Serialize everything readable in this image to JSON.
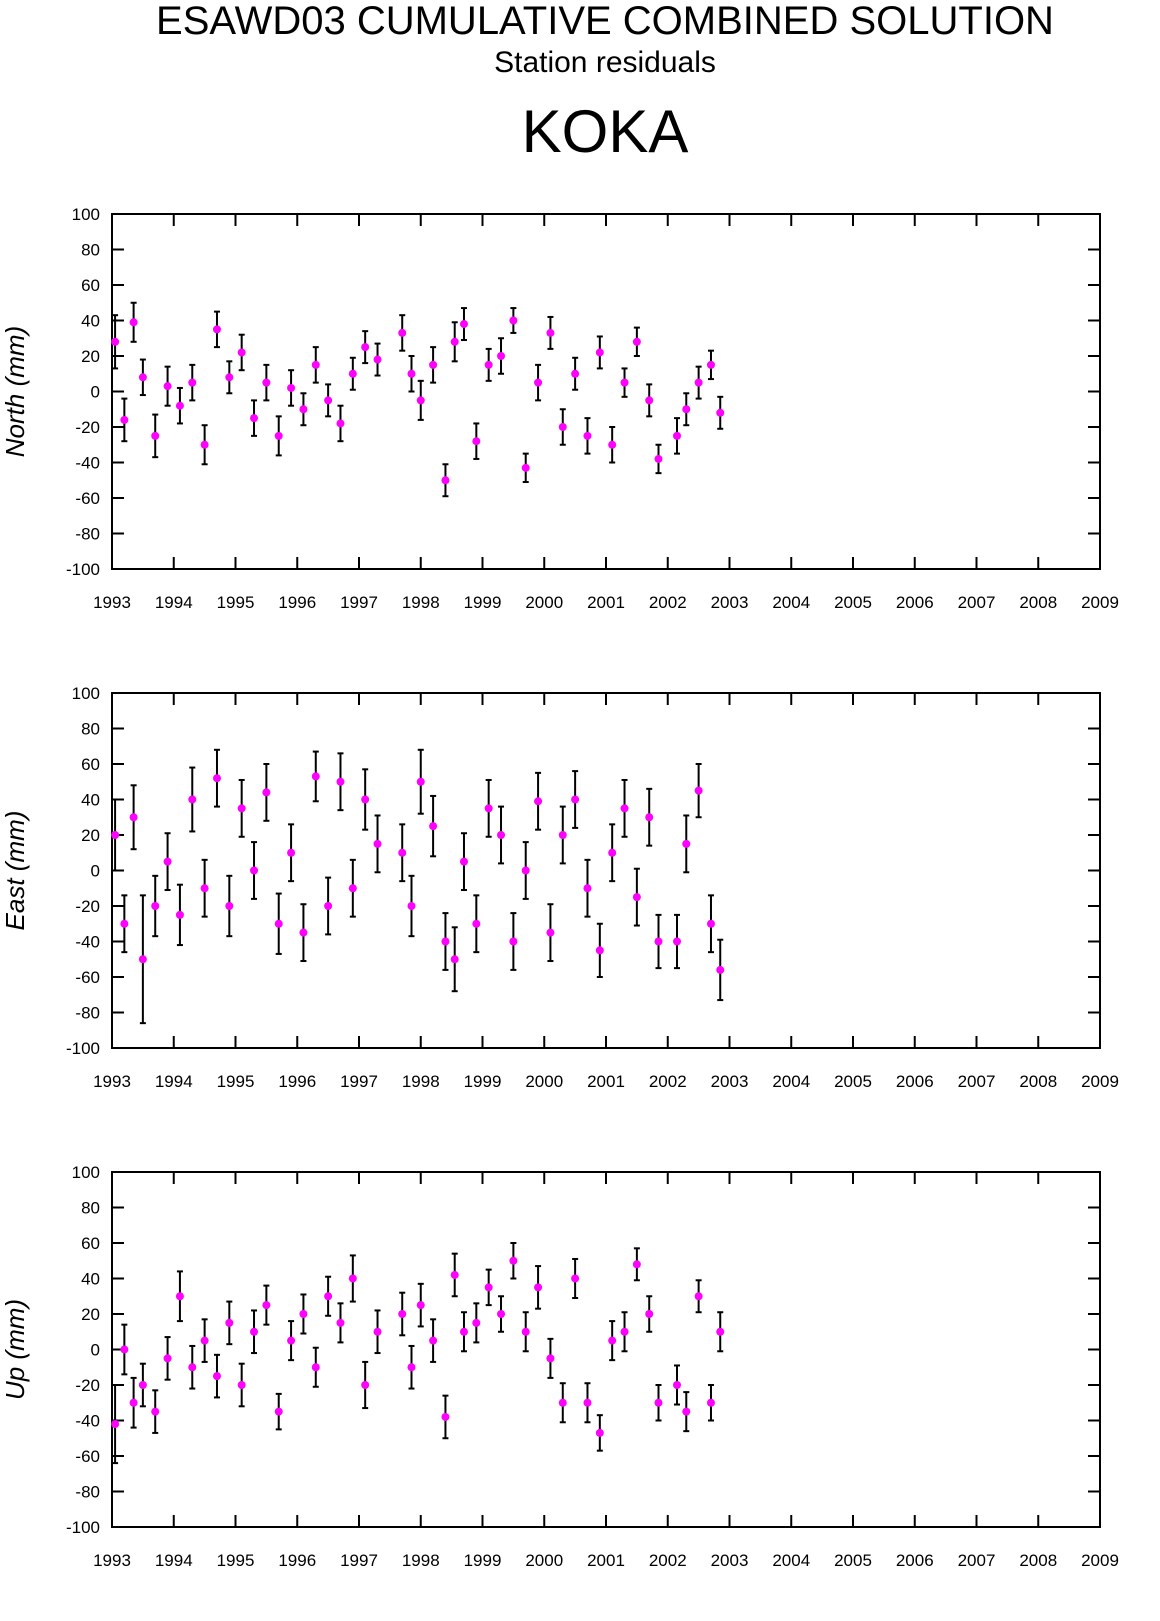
{
  "header": {
    "title": "ESAWD03 CUMULATIVE COMBINED SOLUTION",
    "subtitle": "Station residuals",
    "station": "KOKA"
  },
  "chart_data": [
    {
      "type": "scatter",
      "ylabel": "North (mm)",
      "color": "#ff00ff",
      "error_color": "#000000",
      "xlim": [
        1993,
        2009
      ],
      "xticks": [
        1993,
        1994,
        1995,
        1996,
        1997,
        1998,
        1999,
        2000,
        2001,
        2002,
        2003,
        2004,
        2005,
        2006,
        2007,
        2008,
        2009
      ],
      "ylim": [
        -100,
        100
      ],
      "yticks": [
        -100,
        -80,
        -60,
        -40,
        -20,
        0,
        20,
        40,
        60,
        80,
        100
      ],
      "x": [
        1993.05,
        1993.2,
        1993.35,
        1993.5,
        1993.7,
        1993.9,
        1994.1,
        1994.3,
        1994.5,
        1994.7,
        1994.9,
        1995.1,
        1995.3,
        1995.5,
        1995.7,
        1995.9,
        1996.1,
        1996.3,
        1996.5,
        1996.7,
        1996.9,
        1997.1,
        1997.3,
        1997.7,
        1997.85,
        1998.0,
        1998.2,
        1998.4,
        1998.55,
        1998.7,
        1998.9,
        1999.1,
        1999.3,
        1999.5,
        1999.7,
        1999.9,
        2000.1,
        2000.3,
        2000.5,
        2000.7,
        2000.9,
        2001.1,
        2001.3,
        2001.5,
        2001.7,
        2001.85,
        2002.15,
        2002.3,
        2002.5,
        2002.7,
        2002.85
      ],
      "values": [
        28,
        -16,
        39,
        8,
        -25,
        3,
        -8,
        5,
        -30,
        35,
        8,
        22,
        -15,
        5,
        -25,
        2,
        -10,
        15,
        -5,
        -18,
        10,
        25,
        18,
        33,
        10,
        -5,
        15,
        -50,
        28,
        38,
        -28,
        15,
        20,
        40,
        -43,
        5,
        33,
        -20,
        10,
        -25,
        22,
        -30,
        5,
        28,
        -5,
        -38,
        -25,
        -10,
        5,
        15,
        -12
      ],
      "errors": [
        15,
        12,
        11,
        10,
        12,
        11,
        10,
        10,
        11,
        10,
        9,
        10,
        10,
        10,
        11,
        10,
        9,
        10,
        9,
        10,
        9,
        9,
        9,
        10,
        10,
        11,
        10,
        9,
        11,
        9,
        10,
        9,
        10,
        7,
        8,
        10,
        9,
        10,
        9,
        10,
        9,
        10,
        8,
        8,
        9,
        8,
        10,
        9,
        9,
        8,
        9
      ]
    },
    {
      "type": "scatter",
      "ylabel": "East (mm)",
      "color": "#ff00ff",
      "error_color": "#000000",
      "xlim": [
        1993,
        2009
      ],
      "xticks": [
        1993,
        1994,
        1995,
        1996,
        1997,
        1998,
        1999,
        2000,
        2001,
        2002,
        2003,
        2004,
        2005,
        2006,
        2007,
        2008,
        2009
      ],
      "ylim": [
        -100,
        100
      ],
      "yticks": [
        -100,
        -80,
        -60,
        -40,
        -20,
        0,
        20,
        40,
        60,
        80,
        100
      ],
      "x": [
        1993.05,
        1993.2,
        1993.35,
        1993.5,
        1993.7,
        1993.9,
        1994.1,
        1994.3,
        1994.5,
        1994.7,
        1994.9,
        1995.1,
        1995.3,
        1995.5,
        1995.7,
        1995.9,
        1996.1,
        1996.3,
        1996.5,
        1996.7,
        1996.9,
        1997.1,
        1997.3,
        1997.7,
        1997.85,
        1998.0,
        1998.2,
        1998.4,
        1998.55,
        1998.7,
        1998.9,
        1999.1,
        1999.3,
        1999.5,
        1999.7,
        1999.9,
        2000.1,
        2000.3,
        2000.5,
        2000.7,
        2000.9,
        2001.1,
        2001.3,
        2001.5,
        2001.7,
        2001.85,
        2002.15,
        2002.3,
        2002.5,
        2002.7,
        2002.85
      ],
      "values": [
        20,
        -30,
        30,
        -50,
        -20,
        5,
        -25,
        40,
        -10,
        52,
        -20,
        35,
        0,
        44,
        -30,
        10,
        -35,
        53,
        -20,
        50,
        -10,
        40,
        15,
        10,
        -20,
        50,
        25,
        -40,
        -50,
        5,
        -30,
        35,
        20,
        -40,
        0,
        39,
        -35,
        20,
        40,
        -10,
        -45,
        10,
        35,
        -15,
        30,
        -40,
        -40,
        15,
        45,
        -30,
        -56
      ],
      "errors": [
        20,
        16,
        18,
        36,
        17,
        16,
        17,
        18,
        16,
        16,
        17,
        16,
        16,
        16,
        17,
        16,
        16,
        14,
        16,
        16,
        16,
        17,
        16,
        16,
        17,
        18,
        17,
        16,
        18,
        16,
        16,
        16,
        16,
        16,
        16,
        16,
        16,
        16,
        16,
        16,
        15,
        16,
        16,
        16,
        16,
        15,
        15,
        16,
        15,
        16,
        17
      ]
    },
    {
      "type": "scatter",
      "ylabel": "Up (mm)",
      "color": "#ff00ff",
      "error_color": "#000000",
      "xlim": [
        1993,
        2009
      ],
      "xticks": [
        1993,
        1994,
        1995,
        1996,
        1997,
        1998,
        1999,
        2000,
        2001,
        2002,
        2003,
        2004,
        2005,
        2006,
        2007,
        2008,
        2009
      ],
      "ylim": [
        -100,
        100
      ],
      "yticks": [
        -100,
        -80,
        -60,
        -40,
        -20,
        0,
        20,
        40,
        60,
        80,
        100
      ],
      "x": [
        1993.05,
        1993.2,
        1993.35,
        1993.5,
        1993.7,
        1993.9,
        1994.1,
        1994.3,
        1994.5,
        1994.7,
        1994.9,
        1995.1,
        1995.3,
        1995.5,
        1995.7,
        1995.9,
        1996.1,
        1996.3,
        1996.5,
        1996.7,
        1996.9,
        1997.1,
        1997.3,
        1997.7,
        1997.85,
        1998.0,
        1998.2,
        1998.4,
        1998.55,
        1998.7,
        1998.9,
        1999.1,
        1999.3,
        1999.5,
        1999.7,
        1999.9,
        2000.1,
        2000.3,
        2000.5,
        2000.7,
        2000.9,
        2001.1,
        2001.3,
        2001.5,
        2001.7,
        2001.85,
        2002.15,
        2002.3,
        2002.5,
        2002.7,
        2002.85
      ],
      "values": [
        -42,
        0,
        -30,
        -20,
        -35,
        -5,
        30,
        -10,
        5,
        -15,
        15,
        -20,
        10,
        25,
        -35,
        5,
        20,
        -10,
        30,
        15,
        40,
        -20,
        10,
        20,
        -10,
        25,
        5,
        -38,
        42,
        10,
        15,
        35,
        20,
        50,
        10,
        35,
        -5,
        -30,
        40,
        -30,
        -47,
        5,
        10,
        48,
        20,
        -30,
        -20,
        -35,
        30,
        -30,
        10
      ],
      "errors": [
        22,
        14,
        14,
        12,
        12,
        12,
        14,
        12,
        12,
        12,
        12,
        12,
        12,
        11,
        10,
        11,
        11,
        11,
        11,
        11,
        13,
        13,
        12,
        12,
        12,
        12,
        12,
        12,
        12,
        11,
        11,
        10,
        10,
        10,
        11,
        12,
        11,
        11,
        11,
        11,
        10,
        11,
        11,
        9,
        10,
        10,
        11,
        11,
        9,
        10,
        11
      ]
    }
  ]
}
